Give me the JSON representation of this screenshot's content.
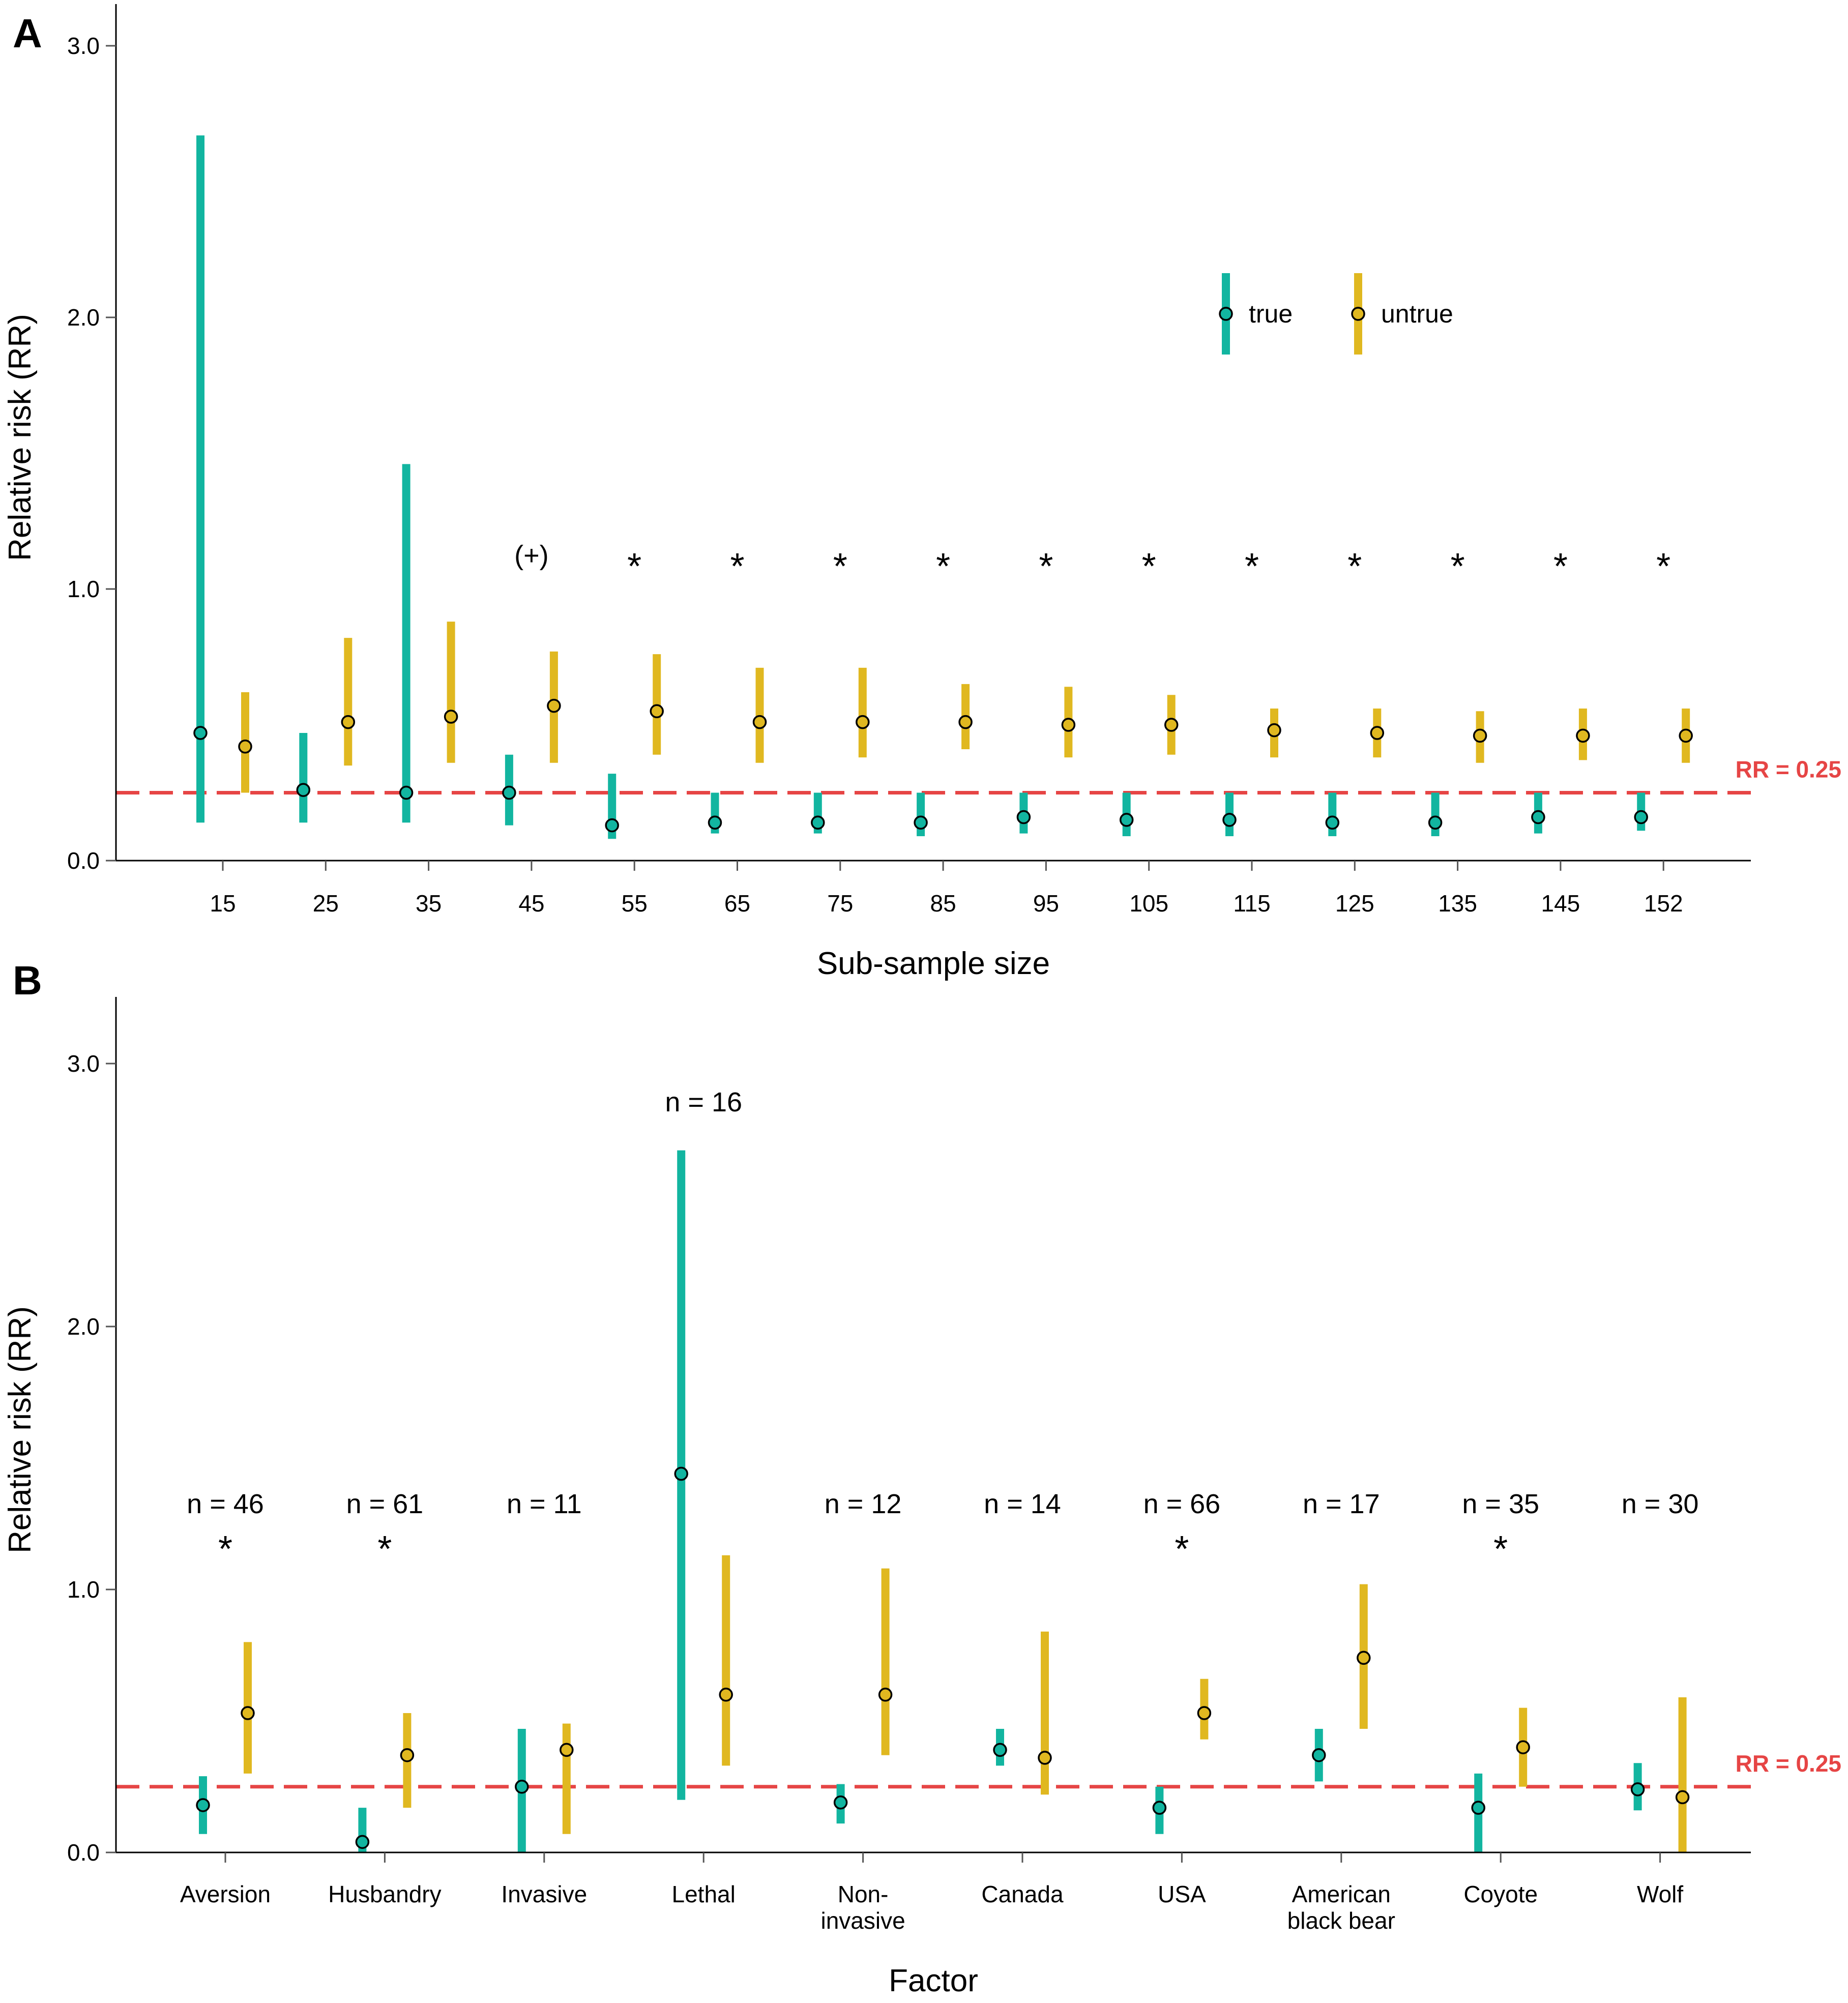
{
  "colors": {
    "true": "#12b5a0",
    "untrue": "#e0b820",
    "reference": "#e64545",
    "axis": "#000000"
  },
  "chart_data": [
    {
      "panel": "A",
      "type": "errorbar",
      "xlabel": "Sub-sample size",
      "ylabel": "Relative risk (RR)",
      "ylim": [
        0,
        3.1
      ],
      "yticks": [
        0,
        1,
        2,
        3
      ],
      "ytick_labels": [
        "0.0",
        "1.0",
        "2.0",
        "3.0"
      ],
      "categories": [
        "15",
        "25",
        "35",
        "45",
        "55",
        "65",
        "75",
        "85",
        "95",
        "105",
        "115",
        "125",
        "135",
        "145",
        "152"
      ],
      "legend": {
        "position": "top-right",
        "entries": [
          "true",
          "untrue"
        ]
      },
      "reference_line": {
        "value": 0.25,
        "label": "RR = 0.25"
      },
      "series": [
        {
          "name": "true",
          "points": [
            0.47,
            0.26,
            0.25,
            0.25,
            0.13,
            0.14,
            0.14,
            0.14,
            0.16,
            0.15,
            0.15,
            0.14,
            0.14,
            0.16,
            0.16
          ],
          "lower": [
            0.14,
            0.14,
            0.14,
            0.13,
            0.08,
            0.1,
            0.1,
            0.09,
            0.1,
            0.09,
            0.09,
            0.09,
            0.09,
            0.1,
            0.11
          ],
          "upper": [
            2.67,
            0.47,
            1.46,
            0.39,
            0.32,
            0.25,
            0.25,
            0.25,
            0.25,
            0.25,
            0.25,
            0.25,
            0.25,
            0.25,
            0.25
          ]
        },
        {
          "name": "untrue",
          "points": [
            0.42,
            0.51,
            0.53,
            0.57,
            0.55,
            0.51,
            0.51,
            0.51,
            0.5,
            0.5,
            0.48,
            0.47,
            0.46,
            0.46,
            0.46
          ],
          "lower": [
            0.25,
            0.35,
            0.36,
            0.36,
            0.39,
            0.36,
            0.38,
            0.41,
            0.38,
            0.39,
            0.38,
            0.38,
            0.36,
            0.37,
            0.36
          ],
          "upper": [
            0.62,
            0.82,
            0.88,
            0.77,
            0.76,
            0.71,
            0.71,
            0.65,
            0.64,
            0.61,
            0.56,
            0.56,
            0.55,
            0.56,
            0.56
          ]
        }
      ],
      "annotations": [
        "",
        "",
        "",
        "(+)",
        "*",
        "*",
        "*",
        "*",
        "*",
        "*",
        "*",
        "*",
        "*",
        "*",
        "*"
      ]
    },
    {
      "panel": "B",
      "type": "errorbar",
      "xlabel": "Factor",
      "ylabel": "Relative risk (RR)",
      "ylim": [
        0,
        3.1
      ],
      "yticks": [
        0,
        1,
        2,
        3
      ],
      "ytick_labels": [
        "0.0",
        "1.0",
        "2.0",
        "3.0"
      ],
      "categories": [
        [
          "Aversion"
        ],
        [
          "Husbandry"
        ],
        [
          "Invasive"
        ],
        [
          "Lethal"
        ],
        [
          "Non-",
          "invasive"
        ],
        [
          "Canada"
        ],
        [
          "USA"
        ],
        [
          "American",
          "black bear"
        ],
        [
          "Coyote"
        ],
        [
          "Wolf"
        ]
      ],
      "reference_line": {
        "value": 0.25,
        "label": "RR = 0.25"
      },
      "series": [
        {
          "name": "true",
          "points": [
            0.18,
            0.04,
            0.25,
            1.44,
            0.19,
            0.39,
            0.17,
            0.37,
            0.17,
            0.24
          ],
          "lower": [
            0.07,
            0.0,
            0.0,
            0.2,
            0.11,
            0.33,
            0.07,
            0.27,
            0.0,
            0.16
          ],
          "upper": [
            0.29,
            0.17,
            0.47,
            2.67,
            0.26,
            0.47,
            0.25,
            0.47,
            0.3,
            0.34
          ]
        },
        {
          "name": "untrue",
          "points": [
            0.53,
            0.37,
            0.39,
            0.6,
            0.6,
            0.36,
            0.53,
            0.74,
            0.4,
            0.21
          ],
          "lower": [
            0.3,
            0.17,
            0.07,
            0.33,
            0.37,
            0.22,
            0.43,
            0.47,
            0.25,
            0.0
          ],
          "upper": [
            0.8,
            0.53,
            0.49,
            1.13,
            1.08,
            0.84,
            0.66,
            1.02,
            0.55,
            0.59
          ]
        }
      ],
      "n_labels": [
        "n = 46",
        "n = 61",
        "n = 11",
        "n = 16",
        "n = 12",
        "n = 14",
        "n = 66",
        "n = 17",
        "n = 35",
        "n = 30"
      ],
      "annotations": [
        "*",
        "*",
        "",
        "",
        "",
        "",
        "*",
        "",
        "*",
        ""
      ]
    }
  ]
}
